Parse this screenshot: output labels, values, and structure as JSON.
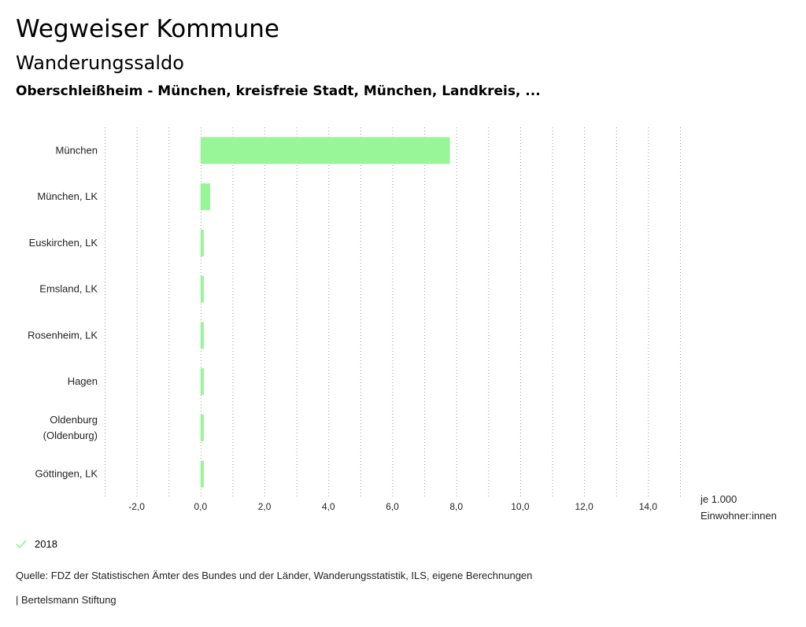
{
  "header": {
    "title": "Wegweiser Kommune",
    "subtitle": "Wanderungssaldo",
    "region": "Oberschleißheim - München, kreisfreie Stadt, München, Landkreis, ..."
  },
  "unit_line1": "je 1.000",
  "unit_line2": "Einwohner:innen",
  "legend": {
    "label": "2018",
    "color": "#98f598"
  },
  "source": "Quelle: FDZ der Statistischen Ämter des Bundes und der Länder, Wanderungsstatistik, ILS, eigene Berechnungen",
  "publisher": "| Bertelsmann Stiftung",
  "chart_data": {
    "type": "bar",
    "orientation": "horizontal",
    "categories": [
      "München",
      "München, LK",
      "Euskirchen, LK",
      "Emsland, LK",
      "Rosenheim, LK",
      "Hagen",
      "Oldenburg (Oldenburg)",
      "Göttingen, LK"
    ],
    "series": [
      {
        "name": "2018",
        "values": [
          7.8,
          0.3,
          0.1,
          0.1,
          0.1,
          0.1,
          0.1,
          0.1
        ],
        "color": "#98f598"
      }
    ],
    "xlim": [
      -3,
      15
    ],
    "xticks": [
      -2,
      0,
      2,
      4,
      6,
      8,
      10,
      12,
      14
    ],
    "xtick_labels": [
      "-2,0",
      "0,0",
      "2,0",
      "4,0",
      "6,0",
      "8,0",
      "10,0",
      "12,0",
      "14,0"
    ],
    "grid": true
  }
}
